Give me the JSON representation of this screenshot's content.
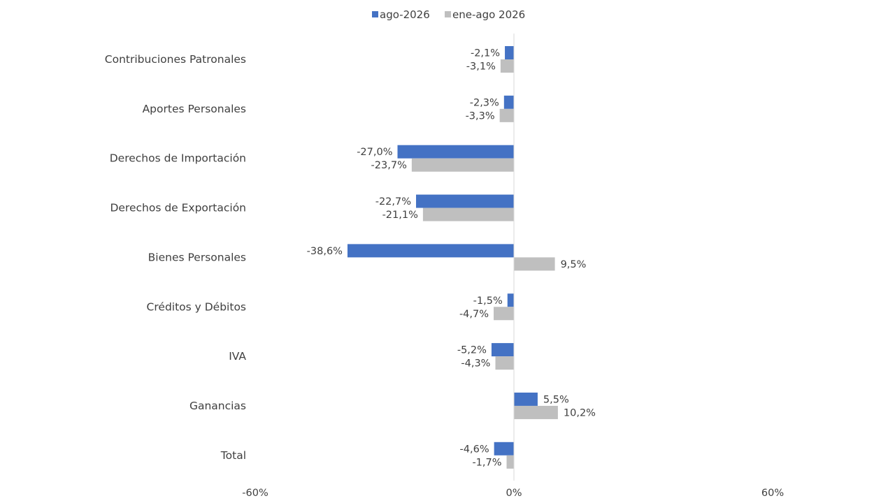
{
  "chart_data": {
    "type": "bar",
    "orientation": "horizontal",
    "title": "",
    "xlabel": "",
    "ylabel": "",
    "categories": [
      "Contribuciones Patronales",
      "Aportes Personales",
      "Derechos de Importación",
      "Derechos de Exportación",
      "Bienes Personales",
      "Créditos y Débitos",
      "IVA",
      "Ganancias",
      "Total"
    ],
    "series": [
      {
        "name": "ago-2026",
        "color": "#4472C4",
        "values": [
          -2.1,
          -2.3,
          -27.0,
          -22.7,
          -38.6,
          -1.5,
          -5.2,
          5.5,
          -4.6
        ],
        "labels": [
          "-2,1%",
          "-2,3%",
          "-27,0%",
          "-22,7%",
          "-38,6%",
          "-1,5%",
          "-5,2%",
          "5,5%",
          "-4,6%"
        ]
      },
      {
        "name": "ene-ago 2026",
        "color": "#BFBFBF",
        "values": [
          -3.1,
          -3.3,
          -23.7,
          -21.1,
          9.5,
          -4.7,
          -4.3,
          10.2,
          -1.7
        ],
        "labels": [
          "-3,1%",
          "-3,3%",
          "-23,7%",
          "-21,1%",
          "9,5%",
          "-4,7%",
          "-4,3%",
          "10,2%",
          "-1,7%"
        ]
      }
    ],
    "xlim": [
      -60,
      60
    ],
    "x_ticks": [
      "-60%",
      "0%",
      "60%"
    ],
    "grid": false,
    "legend_position": "top-center"
  }
}
